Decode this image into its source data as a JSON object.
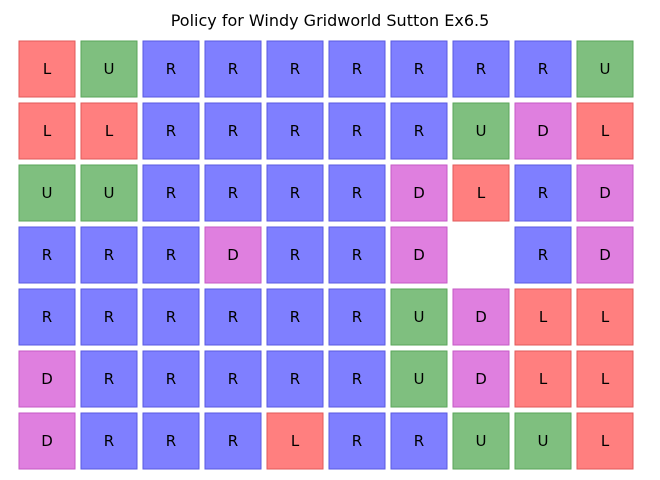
{
  "title": "Policy for Windy Gridworld Sutton Ex6.5",
  "colors": {
    "L": "#ff7f7f",
    "U": "#7fbf7f",
    "R": "#7f7fff",
    "D": "#df7fdf"
  },
  "border_colors": {
    "L": "#e05a5a",
    "U": "#5aa65a",
    "R": "#5a5ae0",
    "D": "#c65ac6"
  },
  "chart_data": {
    "type": "heatmap",
    "title": "Policy for Windy Gridworld Sutton Ex6.5",
    "n_rows": 7,
    "n_cols": 10,
    "grid": [
      [
        "L",
        "U",
        "R",
        "R",
        "R",
        "R",
        "R",
        "R",
        "R",
        "U"
      ],
      [
        "L",
        "L",
        "R",
        "R",
        "R",
        "R",
        "R",
        "U",
        "D",
        "L"
      ],
      [
        "U",
        "U",
        "R",
        "R",
        "R",
        "R",
        "D",
        "L",
        "R",
        "D"
      ],
      [
        "R",
        "R",
        "R",
        "D",
        "R",
        "R",
        "D",
        "",
        "R",
        "D"
      ],
      [
        "R",
        "R",
        "R",
        "R",
        "R",
        "R",
        "U",
        "D",
        "L",
        "L"
      ],
      [
        "D",
        "R",
        "R",
        "R",
        "R",
        "R",
        "U",
        "D",
        "L",
        "L"
      ],
      [
        "D",
        "R",
        "R",
        "R",
        "L",
        "R",
        "R",
        "U",
        "U",
        "L"
      ]
    ]
  }
}
